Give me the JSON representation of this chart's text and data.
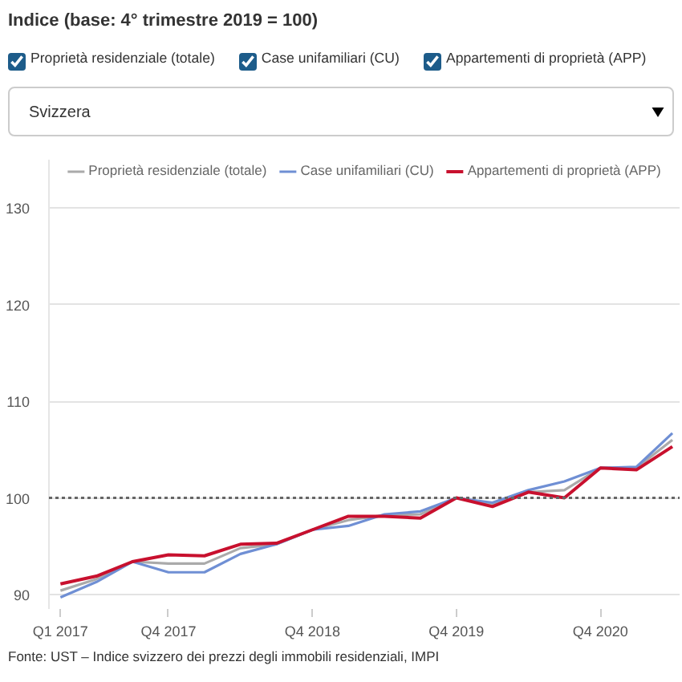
{
  "chart_data": {
    "type": "line",
    "title": "Indice (base: 4° trimestre 2019 = 100)",
    "subtitle": "Svizzera",
    "categories": [
      "Q1 2017",
      null,
      null,
      "Q4 2017",
      null,
      null,
      null,
      "Q4 2018",
      null,
      null,
      null,
      "Q4 2019",
      null,
      null,
      null,
      "Q4 2020",
      null,
      null
    ],
    "series": [
      {
        "name": "Proprietà residenziale (totale)",
        "color": "#aaaaaa",
        "values": [
          90.4,
          91.6,
          93.4,
          93.2,
          93.2,
          94.8,
          95.2,
          96.7,
          97.7,
          98.2,
          98.3,
          100.0,
          99.3,
          100.6,
          100.8,
          103.1,
          103.1,
          106.0
        ]
      },
      {
        "name": "Case unifamiliari (CU)",
        "color": "#6f8fd4",
        "values": [
          89.7,
          91.3,
          93.4,
          92.3,
          92.3,
          94.2,
          95.2,
          96.7,
          97.1,
          98.3,
          98.6,
          100.0,
          99.5,
          100.8,
          101.7,
          103.1,
          103.2,
          106.7
        ]
      },
      {
        "name": "Appartementi di proprietà (APP)",
        "color": "#c8102e",
        "values": [
          91.1,
          91.9,
          93.4,
          94.1,
          94.0,
          95.2,
          95.3,
          96.7,
          98.1,
          98.1,
          97.9,
          100.0,
          99.1,
          100.6,
          100.0,
          103.1,
          102.9,
          105.3
        ]
      }
    ],
    "ylim": [
      88.5,
      135
    ],
    "yticks": [
      90,
      100,
      110,
      120,
      130
    ],
    "grid": "y",
    "legend": "top",
    "ref_lines": [
      {
        "axis": "y",
        "value": 100,
        "color": "#666666",
        "line_style": "dotted"
      }
    ],
    "annotations": [
      "Fonte: UST – Indice svizzero dei prezzi degli immobili residenziali, IMPI"
    ]
  }
}
